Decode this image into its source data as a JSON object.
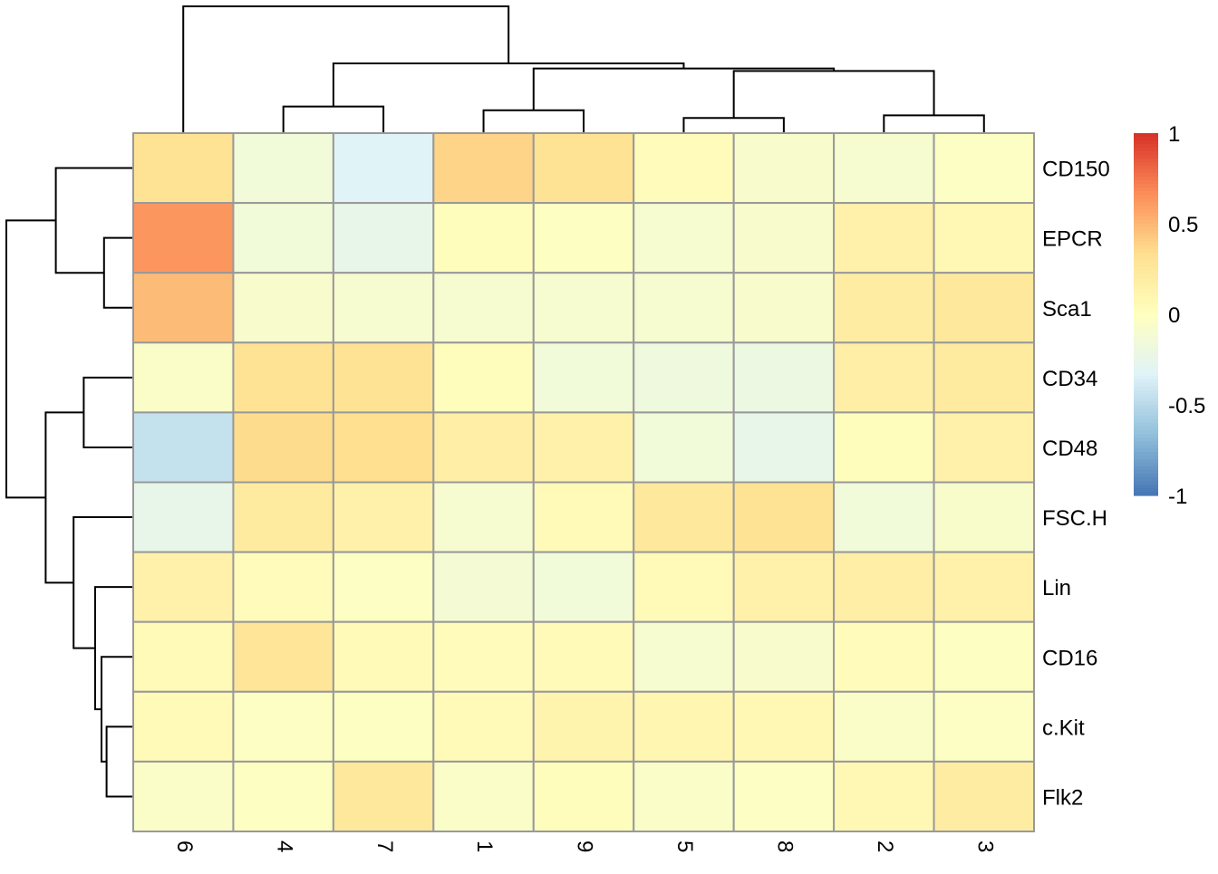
{
  "chart_data": {
    "type": "heatmap",
    "title": "",
    "columns": [
      "6",
      "4",
      "7",
      "1",
      "9",
      "5",
      "8",
      "2",
      "3"
    ],
    "rows": [
      "CD150",
      "EPCR",
      "Sca1",
      "CD34",
      "CD48",
      "FSC.H",
      "Lin",
      "CD16",
      "c.Kit",
      "Flk2"
    ],
    "values": [
      [
        0.3,
        -0.15,
        -0.33,
        0.38,
        0.3,
        0.03,
        -0.08,
        -0.1,
        -0.03
      ],
      [
        0.63,
        -0.15,
        -0.25,
        0.02,
        -0.02,
        -0.1,
        -0.08,
        0.15,
        0.08
      ],
      [
        0.48,
        -0.08,
        -0.1,
        -0.1,
        -0.1,
        -0.1,
        -0.08,
        0.2,
        0.25
      ],
      [
        -0.05,
        0.3,
        0.3,
        0.02,
        -0.15,
        -0.18,
        -0.2,
        0.18,
        0.22
      ],
      [
        -0.45,
        0.35,
        0.33,
        0.18,
        0.15,
        -0.15,
        -0.25,
        0.02,
        0.15
      ],
      [
        -0.25,
        0.22,
        0.15,
        -0.1,
        0.05,
        0.25,
        0.3,
        -0.15,
        -0.07
      ],
      [
        0.15,
        0.03,
        -0.03,
        -0.12,
        -0.15,
        0.05,
        0.15,
        0.18,
        0.15
      ],
      [
        0.05,
        0.28,
        0.05,
        0.03,
        0.05,
        -0.1,
        -0.08,
        0.03,
        -0.02
      ],
      [
        0.05,
        -0.03,
        -0.02,
        0.05,
        0.12,
        0.1,
        0.08,
        -0.05,
        -0.03
      ],
      [
        -0.05,
        -0.02,
        0.25,
        -0.05,
        0.02,
        -0.05,
        -0.03,
        0.08,
        0.2
      ]
    ],
    "color_scale": {
      "range": [
        -1,
        1
      ],
      "ticks": [
        "1",
        "0.5",
        "0",
        "-0.5",
        "-1"
      ],
      "tick_values": [
        1,
        0.5,
        0,
        -0.5,
        -1
      ],
      "colors": [
        "#4575B4",
        "#91BFDB",
        "#E0F3F8",
        "#FFFFBF",
        "#FEE090",
        "#FC8D59",
        "#D73027"
      ]
    },
    "cell_border_color": "#999999",
    "column_dendrogram": {
      "h": 1.0,
      "l": {
        "leaf": 0
      },
      "r": {
        "h": 0.55,
        "l": {
          "h": 0.21,
          "l": {
            "leaf": 1
          },
          "r": {
            "leaf": 2
          }
        },
        "r": {
          "h": 0.51,
          "l": {
            "h": 0.18,
            "l": {
              "leaf": 3
            },
            "r": {
              "leaf": 4
            }
          },
          "r": {
            "h": 0.49,
            "l": {
              "h": 0.12,
              "l": {
                "leaf": 5
              },
              "r": {
                "leaf": 6
              }
            },
            "r": {
              "h": 0.14,
              "l": {
                "leaf": 7
              },
              "r": {
                "leaf": 8
              }
            }
          }
        }
      }
    },
    "row_dendrogram": {
      "h": 1.0,
      "l": {
        "h": 0.61,
        "l": {
          "leaf": 0
        },
        "r": {
          "h": 0.23,
          "l": {
            "leaf": 1
          },
          "r": {
            "leaf": 2
          }
        }
      },
      "r": {
        "h": 0.69,
        "l": {
          "h": 0.39,
          "l": {
            "leaf": 3
          },
          "r": {
            "leaf": 4
          }
        },
        "r": {
          "h": 0.47,
          "l": {
            "leaf": 5
          },
          "r": {
            "h": 0.3,
            "l": {
              "leaf": 6
            },
            "r": {
              "h": 0.25,
              "l": {
                "leaf": 7
              },
              "r": {
                "h": 0.21,
                "l": {
                  "leaf": 8
                },
                "r": {
                  "leaf": 9
                }
              }
            }
          }
        }
      }
    }
  }
}
